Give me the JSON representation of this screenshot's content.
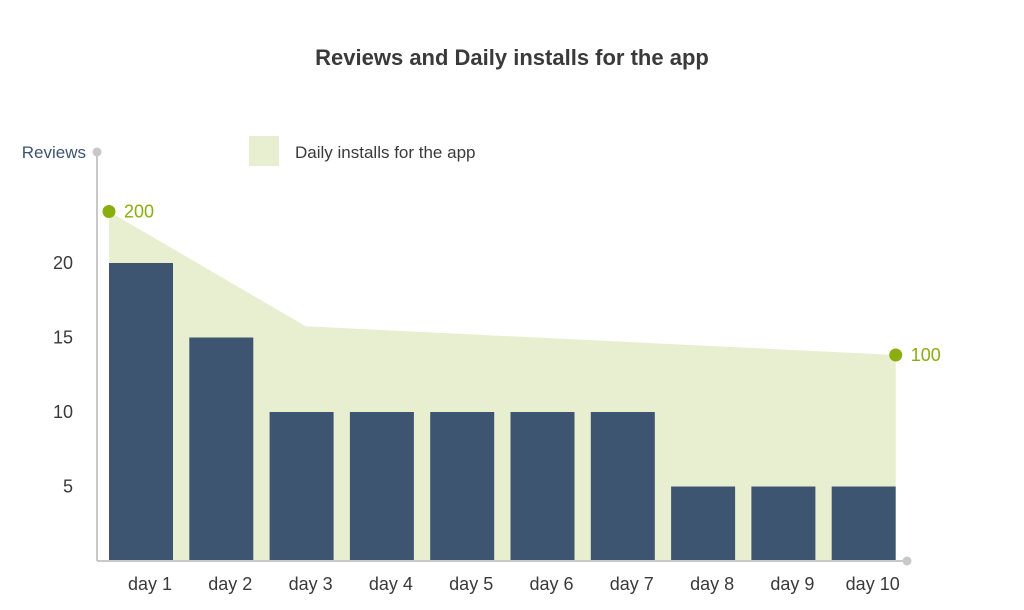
{
  "chart_data": {
    "type": "bar",
    "title": "Reviews and Daily installs for the app",
    "ylabel": "Reviews",
    "xlabel": "",
    "categories": [
      "day 1",
      "day 2",
      "day 3",
      "day 4",
      "day 5",
      "day 6",
      "day 7",
      "day 8",
      "day 9",
      "day 10"
    ],
    "series": [
      {
        "name": "Reviews",
        "type": "bar",
        "values": [
          20,
          15,
          10,
          10,
          10,
          10,
          10,
          5,
          5,
          5
        ]
      },
      {
        "name": "Daily installs for the app",
        "type": "area",
        "values": [
          200,
          160,
          120,
          120,
          120,
          120,
          120,
          120,
          120,
          100
        ]
      }
    ],
    "y_ticks": [
      "5",
      "10",
      "15",
      "20"
    ],
    "ylim": [
      0,
      27
    ],
    "legend": {
      "position": "top",
      "entries": [
        "Daily installs for the app"
      ]
    },
    "annotations": [
      {
        "category": "day 1",
        "series": "Daily installs for the app",
        "text": "200"
      },
      {
        "category": "day 10",
        "series": "Daily installs for the app",
        "text": "100"
      }
    ],
    "grid": false,
    "colors": {
      "bar": "#3d5571",
      "area": "#e8eed0",
      "marker": "#8aad10",
      "axis": "#c8c8c8"
    }
  }
}
